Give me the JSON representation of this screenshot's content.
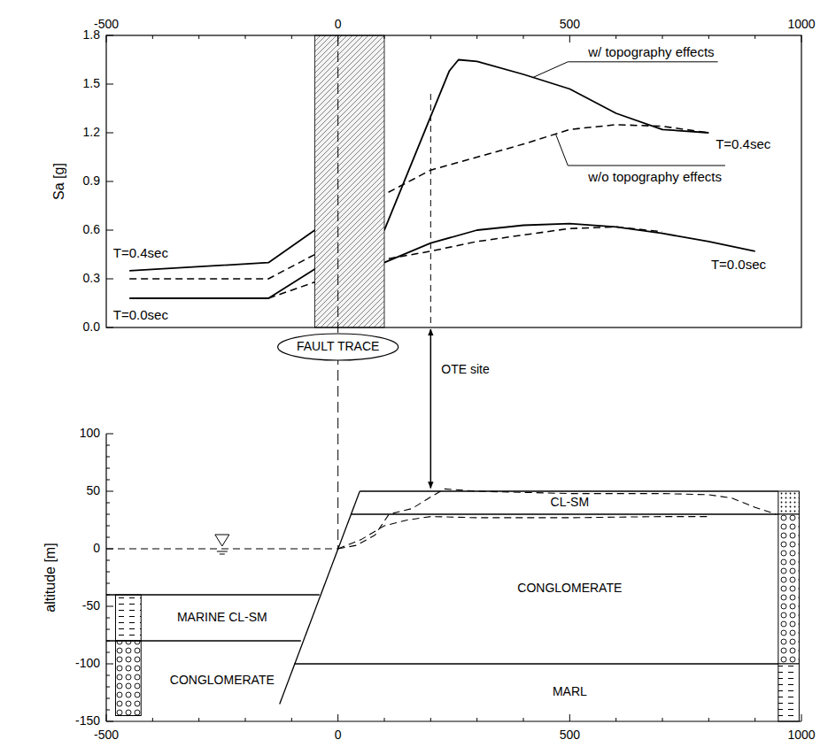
{
  "chart_data": [
    {
      "type": "line",
      "ylabel": "Sa [g]",
      "color": "#000000",
      "xlim": [
        -500,
        1000
      ],
      "xticks": [
        -500,
        0,
        500,
        1000
      ],
      "ylim": [
        0,
        1.8
      ],
      "yticks": [
        {
          "value": 0,
          "label": "0.0"
        },
        0.3,
        0.6,
        0.9,
        1.2,
        1.5,
        1.8
      ],
      "fault_zone": [
        -50,
        100
      ],
      "series": [
        {
          "line_style": "solid",
          "color": "#000000",
          "x": [
            -450,
            -150,
            -50,
            100,
            150,
            200,
            240,
            260,
            300,
            400,
            500,
            600,
            700,
            800
          ],
          "values": [
            0.35,
            0.4,
            0.6,
            0.6,
            0.95,
            1.3,
            1.58,
            1.65,
            1.64,
            1.56,
            1.47,
            1.32,
            1.22,
            1.2
          ]
        },
        {
          "line_style": "dashed",
          "color": "#000000",
          "x": [
            -450,
            -150,
            -50,
            100,
            200,
            300,
            400,
            500,
            600,
            700,
            800
          ],
          "values": [
            0.3,
            0.3,
            0.45,
            0.82,
            0.97,
            1.05,
            1.13,
            1.22,
            1.25,
            1.24,
            1.2
          ]
        },
        {
          "line_style": "solid",
          "color": "#000000",
          "x": [
            -450,
            -150,
            -50,
            100,
            200,
            300,
            400,
            500,
            600,
            700,
            800,
            900
          ],
          "values": [
            0.18,
            0.18,
            0.36,
            0.4,
            0.52,
            0.6,
            0.63,
            0.64,
            0.62,
            0.58,
            0.53,
            0.47
          ]
        },
        {
          "line_style": "dashed",
          "color": "#000000",
          "x": [
            -150,
            -50,
            100,
            200,
            300,
            400,
            500,
            600,
            700
          ],
          "values": [
            0.18,
            0.28,
            0.42,
            0.47,
            0.53,
            0.57,
            0.61,
            0.62,
            0.59
          ]
        }
      ],
      "annotations": [
        {
          "text": "w/ topography effects",
          "x": 540,
          "y": 1.67,
          "target_x": 420,
          "target_y": 1.54
        },
        {
          "text": "w/o topography effects",
          "x": 540,
          "y": 0.9,
          "target_x": 470,
          "target_y": 1.19
        },
        {
          "text": "T=0.4sec",
          "x": -485,
          "y": 0.43
        },
        {
          "text": "T=0.0sec",
          "x": -485,
          "y": 0.05
        },
        {
          "text": "T=0.4sec",
          "x": 815,
          "y": 1.1
        },
        {
          "text": "T=0.0sec",
          "x": 805,
          "y": 0.36
        }
      ]
    },
    {
      "type": "line",
      "ylabel": "altitude [m]",
      "color": "#000000",
      "xlim": [
        -500,
        1000
      ],
      "xticks": [
        -500,
        0,
        500,
        1000
      ],
      "ylim": [
        -150,
        100
      ],
      "yticks": [
        -150,
        -100,
        -50,
        0,
        50,
        100
      ],
      "series": [
        {
          "line_style": "solid",
          "color": "#000000",
          "x": [
            -126,
            47
          ],
          "values": [
            -135,
            50
          ]
        },
        {
          "line_style": "solid",
          "color": "#000000",
          "x": [
            47,
            950
          ],
          "values": [
            50,
            50
          ]
        },
        {
          "line_style": "solid",
          "color": "#000000",
          "x": [
            28,
            950
          ],
          "values": [
            30,
            30
          ]
        },
        {
          "line_style": "solid",
          "color": "#000000",
          "x": [
            -94,
            950
          ],
          "values": [
            -100,
            -100
          ]
        },
        {
          "line_style": "solid",
          "color": "#000000",
          "x": [
            -500,
            -40
          ],
          "values": [
            -40,
            -40
          ]
        },
        {
          "line_style": "solid",
          "color": "#000000",
          "x": [
            -500,
            -80
          ],
          "values": [
            -80,
            -80
          ]
        },
        {
          "line_style": "dashed",
          "color": "#000000",
          "marker": "triangle",
          "x": [
            -500,
            0
          ],
          "values": [
            0,
            0
          ]
        },
        {
          "line_style": "dashed",
          "color": "#000000",
          "x": [
            0,
            40,
            80,
            110,
            160,
            200,
            230,
            300,
            500,
            700,
            800,
            850,
            900,
            945
          ],
          "values": [
            0,
            3,
            12,
            30,
            35,
            45,
            52,
            50,
            48,
            48,
            47,
            44,
            36,
            30
          ]
        },
        {
          "line_style": "dashed",
          "color": "#000000",
          "x": [
            0,
            50,
            100,
            150,
            200,
            300,
            500,
            700,
            800
          ],
          "values": [
            0,
            8,
            20,
            25,
            28,
            27,
            27,
            28,
            28
          ]
        }
      ],
      "columns": [
        {
          "x": [
            -480,
            -425
          ],
          "layers": [
            {
              "top": -40,
              "bottom": -80,
              "marker": "dash"
            },
            {
              "top": -80,
              "bottom": -145,
              "marker": "circle"
            }
          ]
        },
        {
          "x": [
            950,
            995
          ],
          "layers": [
            {
              "top": 50,
              "bottom": 30,
              "marker": "dot"
            },
            {
              "top": 30,
              "bottom": -100,
              "marker": "circle"
            },
            {
              "top": -100,
              "bottom": -150,
              "marker": "dash"
            }
          ]
        }
      ],
      "annotations": [
        {
          "text": "CL-SM",
          "x": 500,
          "y": 40
        },
        {
          "text": "CONGLOMERATE",
          "x": 500,
          "y": -35
        },
        {
          "text": "MARL",
          "x": 500,
          "y": -125
        },
        {
          "text": "MARINE CL-SM",
          "x": -250,
          "y": -60
        },
        {
          "text": "CONGLOMERATE",
          "x": -250,
          "y": -115
        }
      ]
    }
  ],
  "fault_trace": {
    "text": "FAULT TRACE",
    "x": 0,
    "y": 0
  },
  "ote_site": {
    "text": "OTE site",
    "x": 200,
    "y": 52
  }
}
